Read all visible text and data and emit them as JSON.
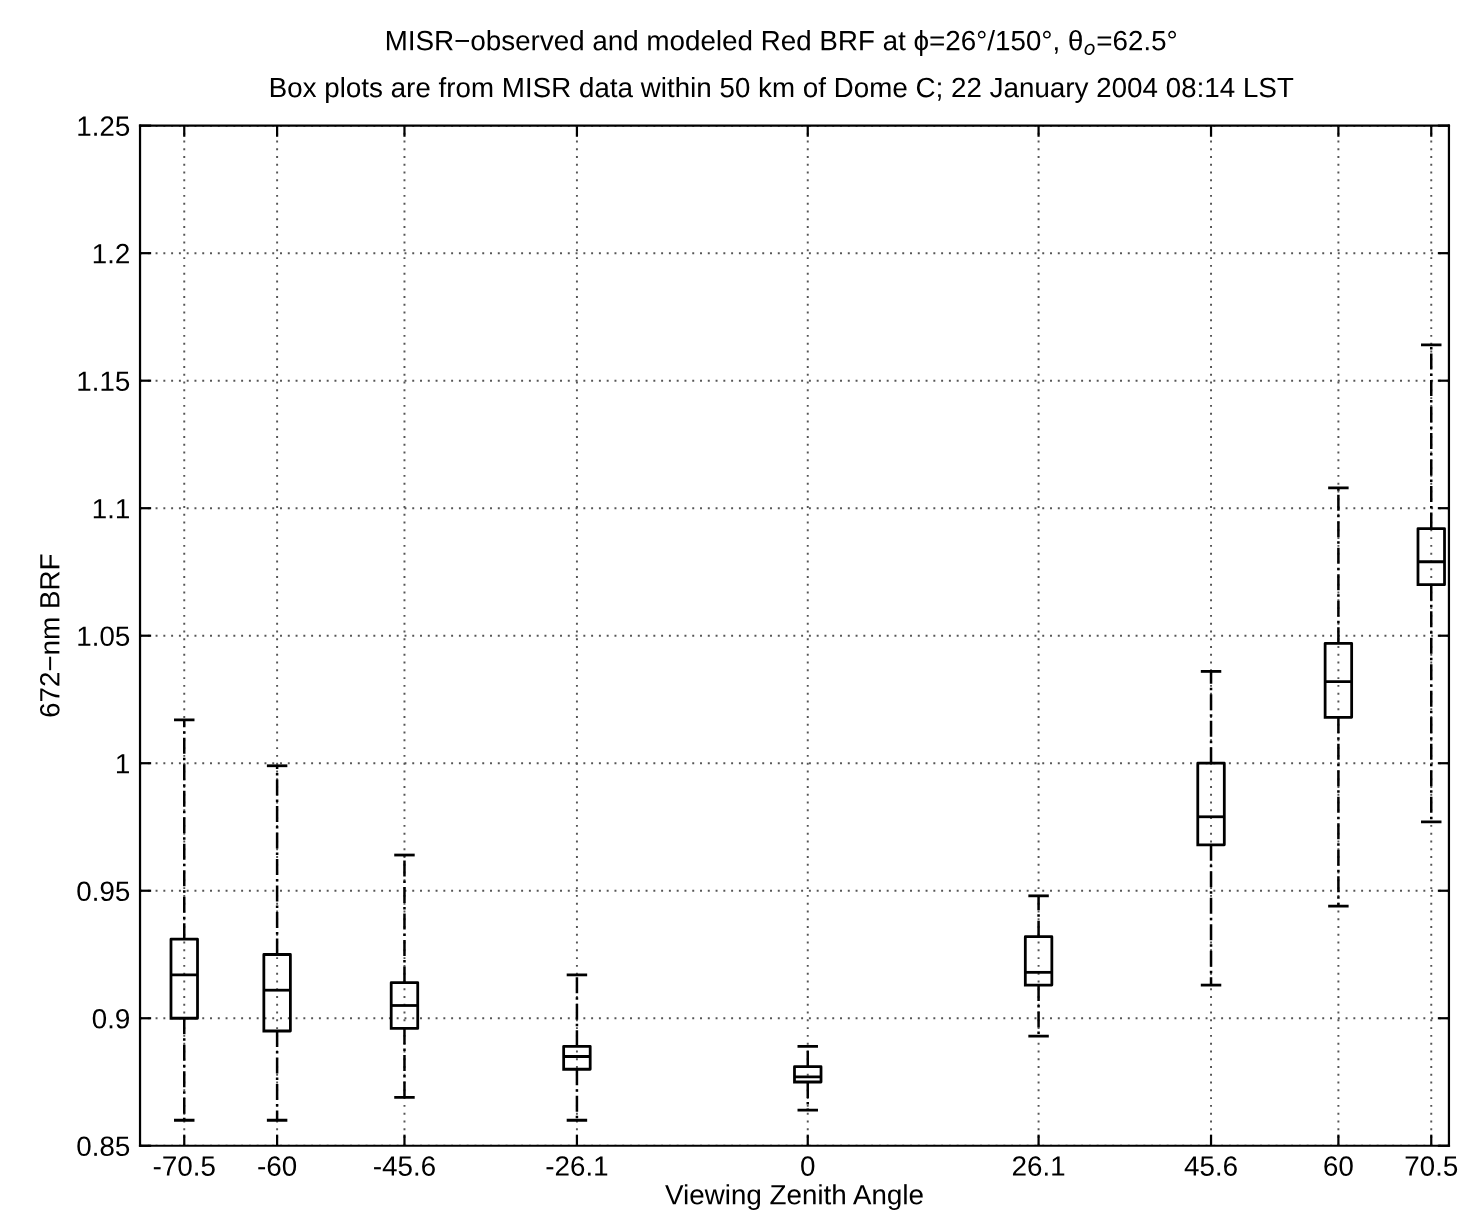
{
  "chart_data": {
    "type": "box",
    "title": "MISR−observed and modeled Red BRF at ϕ=26°/150°, θ$_{o}$=62.5°",
    "subtitle": "Box plots are from MISR data within 50 km of Dome C; 22 January 2004 08:14 LST",
    "xlabel": "Viewing Zenith Angle",
    "ylabel": "672−nm BRF",
    "x": [
      -70.5,
      -60,
      -45.6,
      -26.1,
      0,
      26.1,
      45.6,
      60,
      70.5
    ],
    "boxes": [
      {
        "low": 0.86,
        "q1": 0.9,
        "median": 0.917,
        "q3": 0.931,
        "high": 1.017
      },
      {
        "low": 0.86,
        "q1": 0.895,
        "median": 0.911,
        "q3": 0.925,
        "high": 0.999
      },
      {
        "low": 0.869,
        "q1": 0.896,
        "median": 0.905,
        "q3": 0.914,
        "high": 0.964
      },
      {
        "low": 0.86,
        "q1": 0.88,
        "median": 0.885,
        "q3": 0.889,
        "high": 0.917
      },
      {
        "low": 0.864,
        "q1": 0.875,
        "median": 0.877,
        "q3": 0.881,
        "high": 0.889
      },
      {
        "low": 0.893,
        "q1": 0.913,
        "median": 0.918,
        "q3": 0.932,
        "high": 0.948
      },
      {
        "low": 0.913,
        "q1": 0.968,
        "median": 0.979,
        "q3": 1.0,
        "high": 1.036
      },
      {
        "low": 0.944,
        "q1": 1.018,
        "median": 1.032,
        "q3": 1.047,
        "high": 1.108
      },
      {
        "low": 0.977,
        "q1": 1.07,
        "median": 1.079,
        "q3": 1.092,
        "high": 1.164
      }
    ],
    "color": "#000000",
    "xlim": [
      -75.5,
      72.5
    ],
    "xticks": [
      -70.5,
      -60,
      -45.6,
      -26.1,
      0,
      26.1,
      45.6,
      60,
      70.5
    ],
    "ylim": [
      0.85,
      1.25
    ],
    "yticks": [
      0.85,
      0.9,
      0.95,
      1,
      1.05,
      1.1,
      1.15,
      1.2,
      1.25
    ],
    "grid": true
  }
}
